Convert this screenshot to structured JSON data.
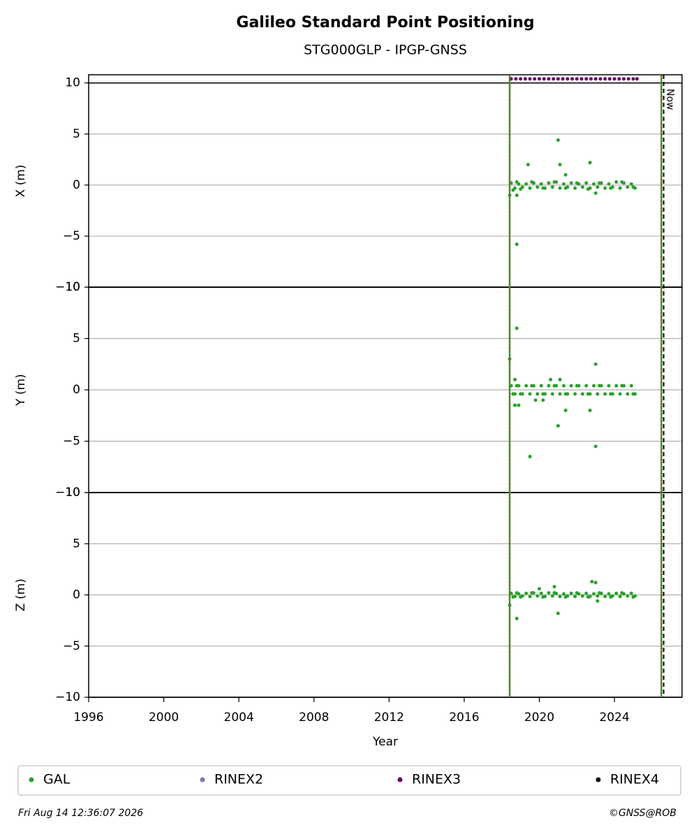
{
  "chart_data": {
    "type": "scatter",
    "title": "Galileo Standard Point Positioning",
    "subtitle": "STG000GLP - IPGP-GNSS",
    "xlabel": "Year",
    "xlim": [
      1996,
      2027.6
    ],
    "xticks": [
      1996,
      2000,
      2004,
      2008,
      2012,
      2016,
      2020,
      2024
    ],
    "grid": true,
    "events": [
      {
        "x": 2018.42
      },
      {
        "x": 2026.5
      }
    ],
    "now": {
      "x": 2026.62,
      "label": "Now"
    },
    "legend": [
      {
        "name": "GAL",
        "color": "#2ca02c"
      },
      {
        "name": "RINEX2",
        "color": "#8172b3"
      },
      {
        "name": "RINEX3",
        "color": "#6b006b"
      },
      {
        "name": "RINEX4",
        "color": "#1b0a1e"
      }
    ],
    "footer_left": "Fri Aug 14 12:36:07 2026",
    "footer_right": "©GNSS@ROB",
    "panels": [
      {
        "ylabel": "X (m)",
        "ylim": [
          -10,
          10.8
        ],
        "hlines": [
          -10,
          10
        ],
        "yticks": [
          {
            "value": -10,
            "label": "−10"
          },
          {
            "value": -5,
            "label": "−5"
          },
          0,
          5,
          10
        ],
        "series": [
          {
            "name": "GAL",
            "color": "#2ca02c",
            "x": [
              2018.5,
              2018.7,
              2018.9,
              2019.1,
              2019.3,
              2019.5,
              2019.7,
              2019.9,
              2020.1,
              2020.3,
              2020.5,
              2020.7,
              2020.9,
              2021.1,
              2021.3,
              2021.5,
              2021.7,
              2021.9,
              2022.1,
              2022.3,
              2022.5,
              2022.7,
              2022.9,
              2023.1,
              2023.3,
              2023.5,
              2023.7,
              2023.9,
              2024.1,
              2024.3,
              2024.5,
              2024.7,
              2024.9,
              2025.1,
              2018.6,
              2018.8,
              2019.0,
              2019.6,
              2020.2,
              2020.8,
              2021.4,
              2022.0,
              2022.6,
              2023.2,
              2023.8,
              2024.4,
              2025.0,
              2021.0,
              2019.4,
              2021.1,
              2022.7,
              2021.4,
              2018.8,
              2018.42,
              2018.8,
              2023.0
            ],
            "values": [
              0.2,
              -0.3,
              0.1,
              -0.2,
              0.1,
              -0.3,
              0.2,
              -0.2,
              0.1,
              -0.3,
              0.2,
              -0.2,
              0.3,
              -0.3,
              0.1,
              -0.2,
              0.2,
              -0.3,
              0.1,
              -0.2,
              0.2,
              -0.3,
              0.1,
              -0.2,
              0.2,
              -0.3,
              0.1,
              -0.2,
              0.3,
              -0.3,
              0.2,
              -0.2,
              0.1,
              -0.3,
              -0.5,
              0.3,
              -0.4,
              0.3,
              -0.3,
              0.3,
              -0.3,
              0.2,
              -0.4,
              0.2,
              -0.3,
              0.3,
              -0.2,
              4.4,
              2.0,
              2.0,
              2.2,
              1.0,
              -5.8,
              -1.0,
              -1.0,
              -0.8
            ]
          },
          {
            "name": "RINEX3",
            "color": "#6b006b",
            "x": [
              2018.5,
              2018.75,
              2019.0,
              2019.25,
              2019.5,
              2019.75,
              2020.0,
              2020.25,
              2020.5,
              2020.75,
              2021.0,
              2021.25,
              2021.5,
              2021.75,
              2022.0,
              2022.25,
              2022.5,
              2022.75,
              2023.0,
              2023.25,
              2023.5,
              2023.75,
              2024.0,
              2024.25,
              2024.5,
              2024.75,
              2025.0,
              2025.2
            ],
            "values": [
              10.4,
              10.4,
              10.4,
              10.4,
              10.4,
              10.4,
              10.4,
              10.4,
              10.4,
              10.4,
              10.4,
              10.4,
              10.4,
              10.4,
              10.4,
              10.4,
              10.4,
              10.4,
              10.4,
              10.4,
              10.4,
              10.4,
              10.4,
              10.4,
              10.4,
              10.4,
              10.4,
              10.4
            ]
          }
        ]
      },
      {
        "ylabel": "Y (m)",
        "ylim": [
          -10,
          10
        ],
        "hlines": [
          -10,
          10
        ],
        "yticks": [
          {
            "value": -10,
            "label": "−10"
          },
          {
            "value": -5,
            "label": "−5"
          },
          0,
          5,
          10
        ],
        "series": [
          {
            "name": "GAL",
            "color": "#2ca02c",
            "x": [
              2018.5,
              2018.7,
              2018.9,
              2019.1,
              2019.3,
              2019.5,
              2019.7,
              2019.9,
              2020.1,
              2020.3,
              2020.5,
              2020.7,
              2020.9,
              2021.1,
              2021.3,
              2021.5,
              2021.7,
              2021.9,
              2022.1,
              2022.3,
              2022.5,
              2022.7,
              2022.9,
              2023.1,
              2023.3,
              2023.5,
              2023.7,
              2023.9,
              2024.1,
              2024.3,
              2024.5,
              2024.7,
              2024.9,
              2025.1,
              2018.6,
              2018.8,
              2019.0,
              2019.6,
              2020.2,
              2020.8,
              2021.4,
              2022.0,
              2022.6,
              2023.2,
              2023.8,
              2024.4,
              2025.0,
              2018.42,
              2018.8,
              2018.7,
              2018.7,
              2018.9,
              2019.5,
              2020.6,
              2021.0,
              2021.1,
              2021.4,
              2022.7,
              2023.0,
              2023.0,
              2019.8,
              2020.2
            ],
            "values": [
              0.4,
              -0.4,
              0.4,
              -0.4,
              0.4,
              -0.4,
              0.4,
              -0.4,
              0.4,
              -0.4,
              0.4,
              -0.4,
              0.4,
              -0.4,
              0.4,
              -0.4,
              0.4,
              -0.4,
              0.4,
              -0.4,
              0.4,
              -0.4,
              0.4,
              -0.4,
              0.4,
              -0.4,
              0.4,
              -0.4,
              0.4,
              -0.4,
              0.4,
              -0.4,
              0.4,
              -0.4,
              -0.4,
              0.4,
              -0.4,
              0.4,
              -0.4,
              0.4,
              -0.4,
              0.4,
              -0.4,
              0.4,
              -0.4,
              0.4,
              -0.4,
              3.0,
              6.0,
              1.0,
              -1.5,
              -1.5,
              -6.5,
              1.0,
              -3.5,
              1.0,
              -2.0,
              -2.0,
              2.5,
              -5.5,
              -1.0,
              -1.0
            ]
          }
        ]
      },
      {
        "ylabel": "Z (m)",
        "ylim": [
          -10,
          10
        ],
        "hlines": [
          -10,
          10
        ],
        "yticks": [
          {
            "value": -10,
            "label": "−10"
          },
          {
            "value": -5,
            "label": "−5"
          },
          0,
          5,
          10
        ],
        "series": [
          {
            "name": "GAL",
            "color": "#2ca02c",
            "x": [
              2018.5,
              2018.7,
              2018.9,
              2019.1,
              2019.3,
              2019.5,
              2019.7,
              2019.9,
              2020.1,
              2020.3,
              2020.5,
              2020.7,
              2020.9,
              2021.1,
              2021.3,
              2021.5,
              2021.7,
              2021.9,
              2022.1,
              2022.3,
              2022.5,
              2022.7,
              2022.9,
              2023.1,
              2023.3,
              2023.5,
              2023.7,
              2023.9,
              2024.1,
              2024.3,
              2024.5,
              2024.7,
              2024.9,
              2025.1,
              2018.6,
              2018.8,
              2019.0,
              2019.6,
              2020.2,
              2020.8,
              2021.4,
              2022.0,
              2022.6,
              2023.2,
              2023.8,
              2024.4,
              2025.0,
              2018.42,
              2018.8,
              2020.0,
              2020.8,
              2021.0,
              2022.8,
              2023.0,
              2023.1
            ],
            "values": [
              0.15,
              -0.15,
              0.1,
              -0.1,
              0.15,
              -0.15,
              0.2,
              -0.1,
              0.15,
              -0.15,
              0.2,
              -0.1,
              0.15,
              -0.15,
              0.1,
              -0.1,
              0.15,
              -0.15,
              0.1,
              -0.1,
              0.15,
              -0.15,
              0.1,
              -0.1,
              0.15,
              -0.15,
              0.1,
              -0.1,
              0.15,
              -0.15,
              0.1,
              -0.1,
              0.15,
              -0.1,
              -0.2,
              0.2,
              -0.2,
              0.2,
              -0.2,
              0.2,
              -0.2,
              0.2,
              -0.2,
              0.2,
              -0.2,
              0.2,
              -0.2,
              -1.0,
              -2.3,
              0.6,
              0.8,
              -1.8,
              1.3,
              1.2,
              -0.6
            ]
          }
        ]
      }
    ]
  }
}
